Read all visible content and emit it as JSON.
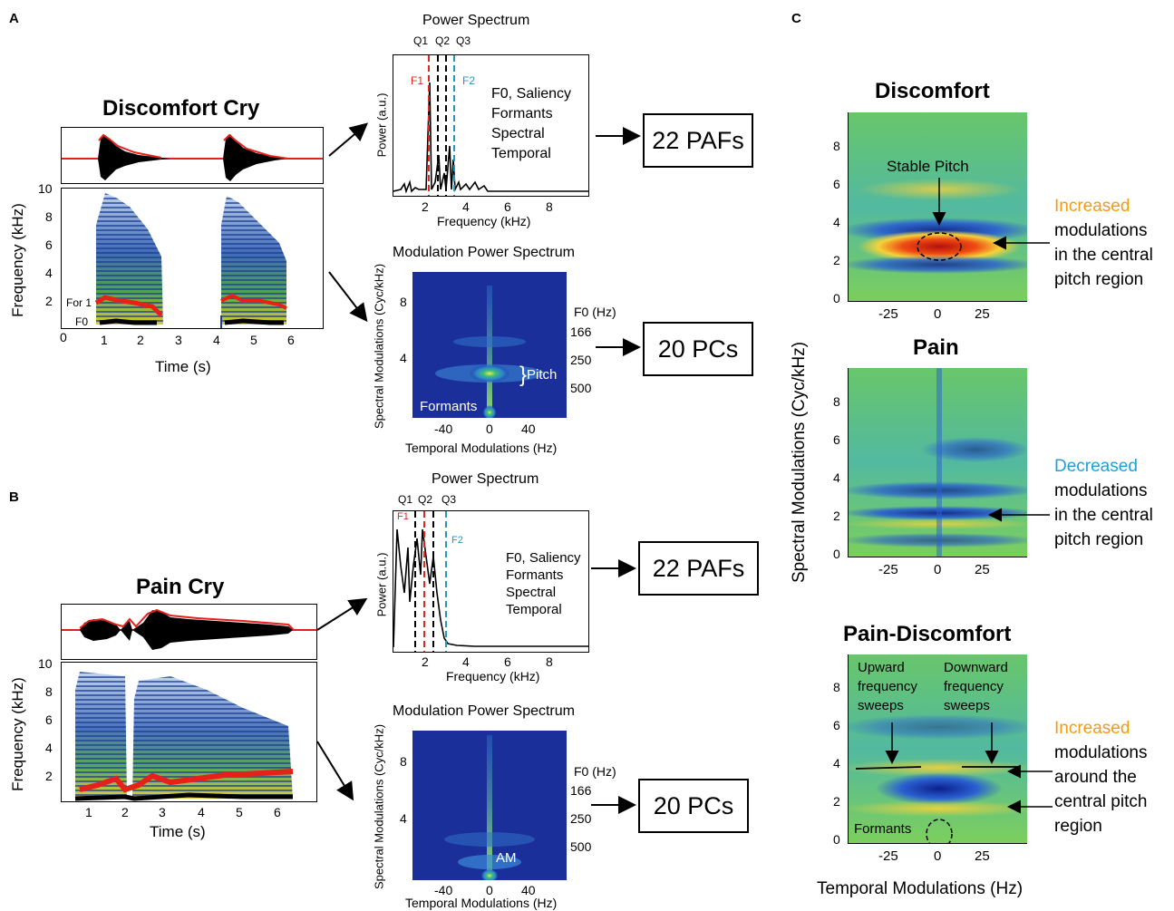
{
  "panels": {
    "a": "A",
    "b": "B",
    "c": "C"
  },
  "panel_a": {
    "title": "Discomfort Cry",
    "spec_ylabel": "Frequency (kHz)",
    "spec_xlabel": "Time (s)",
    "spec_yticks": [
      "10",
      "8",
      "6",
      "4",
      "2"
    ],
    "spec_xticks": [
      "0",
      "1",
      "2",
      "3",
      "4",
      "5",
      "6"
    ],
    "for1_label": "For 1",
    "f0_label": "F0",
    "ps_title": "Power Spectrum",
    "quartiles": [
      "Q1",
      "Q2",
      "Q3"
    ],
    "f1": "F1",
    "f2": "F2",
    "ps_ylabel": "Power (a.u.)",
    "ps_xlabel": "Frequency (kHz)",
    "ps_xticks": [
      "2",
      "4",
      "6",
      "8"
    ],
    "ps_features": [
      "F0, Saliency",
      "Formants",
      "Spectral",
      "Temporal"
    ],
    "box_pafs": "22 PAFs",
    "mps_title": "Modulation Power Spectrum",
    "mps_ylabel": "Spectral Modulations (Cyc/kHz)",
    "mps_xlabel": "Temporal Modulations (Hz)",
    "mps_yticks": [
      "8",
      "4"
    ],
    "mps_xticks": [
      "-40",
      "0",
      "40"
    ],
    "f0_axis_label": "F0 (Hz)",
    "f0_ticks": [
      "166",
      "250",
      "500"
    ],
    "pitch_label": "Pitch",
    "formants_label": "Formants",
    "box_pcs": "20 PCs"
  },
  "panel_b": {
    "title": "Pain Cry",
    "spec_ylabel": "Frequency (kHz)",
    "spec_xlabel": "Time (s)",
    "spec_yticks": [
      "10",
      "8",
      "6",
      "4",
      "2"
    ],
    "spec_xticks": [
      "1",
      "2",
      "3",
      "4",
      "5",
      "6"
    ],
    "ps_title": "Power Spectrum",
    "quartiles": [
      "Q1",
      "Q2",
      "Q3"
    ],
    "f1": "F1",
    "f2": "F2",
    "ps_ylabel": "Power (a.u.)",
    "ps_xlabel": "Frequency (kHz)",
    "ps_xticks": [
      "2",
      "4",
      "6",
      "8"
    ],
    "ps_features": [
      "F0, Saliency",
      "Formants",
      "Spectral",
      "Temporal"
    ],
    "box_pafs": "22 PAFs",
    "mps_title": "Modulation Power Spectrum",
    "mps_ylabel": "Spectral Modulations (Cyc/kHz)",
    "mps_xlabel": "Temporal Modulations (Hz)",
    "mps_yticks": [
      "8",
      "4"
    ],
    "mps_xticks": [
      "-40",
      "0",
      "40"
    ],
    "f0_axis_label": "F0 (Hz)",
    "f0_ticks": [
      "166",
      "250",
      "500"
    ],
    "am_label": "AM",
    "box_pcs": "20 PCs"
  },
  "panel_c": {
    "ylabel": "Spectral Modulations (Cyc/kHz)",
    "xlabel": "Temporal Modulations (Hz)",
    "yticks": [
      "8",
      "6",
      "4",
      "2",
      "0"
    ],
    "xticks": [
      "-25",
      "0",
      "25"
    ],
    "discomfort": {
      "title": "Discomfort",
      "stable_pitch": "Stable Pitch",
      "ann_highlight": "Increased",
      "ann_rest": [
        "modulations",
        "in the central",
        "pitch region"
      ]
    },
    "pain": {
      "title": "Pain",
      "ann_highlight": "Decreased",
      "ann_rest": [
        "modulations",
        "in the central",
        "pitch region"
      ]
    },
    "diff": {
      "title": "Pain-Discomfort",
      "upward": [
        "Upward",
        "frequency",
        "sweeps"
      ],
      "downward": [
        "Downward",
        "frequency",
        "sweeps"
      ],
      "formants": "Formants",
      "ann_highlight": "Increased",
      "ann_rest": [
        "modulations",
        "around the",
        "central pitch",
        "region"
      ]
    }
  },
  "colors": {
    "increase": "#f39c12",
    "decrease": "#1fa0d8",
    "f1_line": "#e0261f",
    "f2_line": "#2596be",
    "envelope": "#e8201a",
    "mps_bg": "#1b2f9a"
  }
}
